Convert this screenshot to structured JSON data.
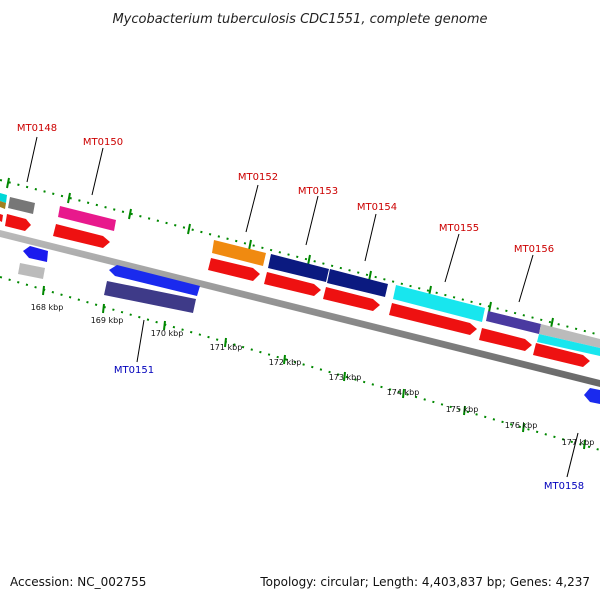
{
  "title": "Mycobacterium tuberculosis CDC1551, complete genome",
  "footer": {
    "accession": "Accession: NC_002755",
    "summary": "Topology: circular; Length: 4,403,837 bp; Genes: 4,237"
  },
  "ticks": [
    "168 kbp",
    "169 kbp",
    "170 kbp",
    "171 kbp",
    "172 kbp",
    "173 kbp",
    "174 kbp",
    "175 kbp",
    "176 kbp",
    "177 kbp"
  ],
  "gene_labels": [
    "MT0148",
    "MT0150",
    "MT0151",
    "MT0152",
    "MT0153",
    "MT0154",
    "MT0155",
    "MT0156",
    "MT0158"
  ],
  "colors": {
    "label_forward": "#cc0000",
    "label_reverse": "#0000bb",
    "tick_mark": "#008800",
    "axis": "#888888"
  }
}
